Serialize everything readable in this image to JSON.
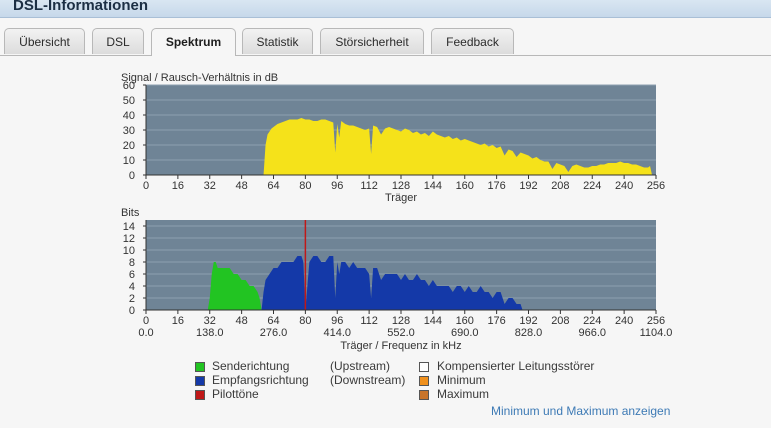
{
  "window": {
    "title": "DSL-Informationen"
  },
  "tabs": [
    {
      "label": "Übersicht",
      "active": false
    },
    {
      "label": "DSL",
      "active": false
    },
    {
      "label": "Spektrum",
      "active": true
    },
    {
      "label": "Statistik",
      "active": false
    },
    {
      "label": "Störsicherheit",
      "active": false
    },
    {
      "label": "Feedback",
      "active": false
    }
  ],
  "colors": {
    "plot_bg": "#6f8496",
    "grid": "#8ea0b0",
    "snr_fill": "#f5e21a",
    "upstream": "#22c422",
    "downstream": "#1439a8",
    "pilot": "#c01818"
  },
  "chart_data": [
    {
      "type": "area",
      "title": "Signal / Rausch-Verhältnis in dB",
      "xlabel": "Träger",
      "ylabel": "",
      "xlim": [
        0,
        256
      ],
      "ylim": [
        0,
        60
      ],
      "x_ticks": [
        "0",
        "16",
        "32",
        "48",
        "64",
        "80",
        "96",
        "112",
        "128",
        "144",
        "160",
        "176",
        "192",
        "208",
        "224",
        "240",
        "256"
      ],
      "y_ticks": [
        "0",
        "10",
        "20",
        "30",
        "40",
        "50",
        "60"
      ],
      "series": [
        {
          "values_x": [
            0,
            59,
            60,
            61,
            62,
            63,
            64,
            66,
            68,
            70,
            72,
            74,
            76,
            78,
            80,
            82,
            84,
            86,
            88,
            90,
            92,
            94,
            95,
            96,
            97,
            98,
            100,
            102,
            104,
            106,
            108,
            110,
            112,
            113,
            114,
            116,
            118,
            120,
            122,
            124,
            126,
            128,
            130,
            132,
            134,
            136,
            138,
            140,
            142,
            144,
            146,
            148,
            150,
            152,
            154,
            156,
            158,
            160,
            162,
            164,
            166,
            168,
            170,
            172,
            174,
            176,
            178,
            180,
            182,
            184,
            186,
            188,
            190,
            192,
            194,
            196,
            198,
            200,
            202,
            204,
            206,
            208,
            210,
            212,
            214,
            216,
            218,
            220,
            222,
            224,
            226,
            228,
            230,
            232,
            234,
            236,
            238,
            240,
            242,
            244,
            246,
            248,
            250,
            252,
            253,
            254,
            255,
            256
          ],
          "values_y": [
            0,
            0,
            20,
            27,
            29,
            31,
            32,
            34,
            35,
            36,
            37,
            37,
            37,
            38,
            37,
            37,
            36,
            36,
            37,
            37,
            36,
            35,
            15,
            34,
            25,
            36,
            34,
            33,
            33,
            32,
            31,
            30,
            31,
            14,
            33,
            32,
            27,
            31,
            32,
            31,
            30,
            29,
            31,
            30,
            28,
            29,
            27,
            28,
            26,
            29,
            27,
            26,
            25,
            26,
            24,
            25,
            23,
            24,
            23,
            22,
            21,
            20,
            21,
            19,
            20,
            18,
            19,
            13,
            17,
            16,
            12,
            15,
            14,
            13,
            11,
            12,
            10,
            9,
            9,
            4,
            8,
            7,
            6,
            2,
            6,
            7,
            6,
            5,
            5,
            6,
            6,
            7,
            7,
            8,
            8,
            8,
            9,
            8,
            8,
            7,
            7,
            6,
            5,
            5,
            6,
            0,
            0,
            0
          ]
        }
      ]
    },
    {
      "type": "area",
      "title": "Bits",
      "xlabel": "Träger / Frequenz in kHz",
      "ylabel": "Bits",
      "xlim": [
        0,
        256
      ],
      "ylim": [
        0,
        15
      ],
      "x_ticks": [
        "0",
        "16",
        "32",
        "48",
        "64",
        "80",
        "96",
        "112",
        "128",
        "144",
        "160",
        "176",
        "192",
        "208",
        "224",
        "240",
        "256"
      ],
      "x_ticks_khz": [
        "0.0",
        "138.0",
        "276.0",
        "414.0",
        "552.0",
        "690.0",
        "828.0",
        "966.0",
        "1104.0"
      ],
      "y_ticks": [
        "0",
        "2",
        "4",
        "6",
        "8",
        "10",
        "12",
        "14"
      ],
      "pilot_tone_carrier": 80,
      "series": [
        {
          "name": "Senderichtung (Upstream)",
          "values_x": [
            31,
            32,
            33,
            34,
            35,
            36,
            38,
            40,
            42,
            44,
            46,
            48,
            50,
            52,
            54,
            56,
            57,
            58
          ],
          "values_y": [
            0,
            2,
            6,
            8,
            8,
            7,
            7,
            7,
            7,
            6,
            6,
            5,
            5,
            4,
            4,
            3,
            2,
            0
          ]
        },
        {
          "name": "Empfangsrichtung (Downstream)",
          "values_x": [
            58,
            59,
            60,
            62,
            64,
            66,
            68,
            70,
            72,
            74,
            76,
            78,
            79,
            80,
            82,
            84,
            86,
            88,
            90,
            92,
            94,
            95,
            96,
            97,
            98,
            100,
            102,
            104,
            106,
            108,
            110,
            112,
            113,
            114,
            116,
            118,
            120,
            122,
            124,
            126,
            128,
            130,
            132,
            134,
            136,
            138,
            140,
            142,
            144,
            146,
            148,
            150,
            152,
            154,
            156,
            158,
            160,
            162,
            164,
            166,
            168,
            170,
            172,
            174,
            176,
            178,
            180,
            182,
            184,
            186,
            187,
            188,
            189
          ],
          "values_y": [
            0,
            3,
            5,
            6,
            7,
            7,
            8,
            8,
            8,
            8,
            9,
            9,
            8,
            0,
            8,
            9,
            9,
            8,
            8,
            9,
            9,
            2,
            8,
            6,
            8,
            8,
            7,
            8,
            7,
            7,
            7,
            6,
            2,
            7,
            7,
            5,
            6,
            6,
            6,
            6,
            5,
            6,
            5,
            5,
            6,
            5,
            5,
            4,
            5,
            4,
            4,
            4,
            4,
            3,
            4,
            4,
            3,
            4,
            3,
            3,
            4,
            3,
            3,
            2,
            3,
            3,
            1,
            2,
            2,
            1,
            1,
            1,
            0
          ]
        }
      ]
    }
  ],
  "legend": [
    {
      "label": "Senderichtung",
      "direction": "(Upstream)",
      "color": "#22c422"
    },
    {
      "label": "Empfangsrichtung",
      "direction": "(Downstream)",
      "color": "#1439a8"
    },
    {
      "label": "Pilottöne",
      "direction": "",
      "color": "#c01818"
    },
    {
      "label": "Kompensierter Leitungsstörer",
      "color": "#ffffff"
    },
    {
      "label": "Minimum",
      "color": "#f0901c"
    },
    {
      "label": "Maximum",
      "color": "#c8742a"
    }
  ],
  "footer": {
    "toggle_link": "Minimum und Maximum anzeigen"
  }
}
